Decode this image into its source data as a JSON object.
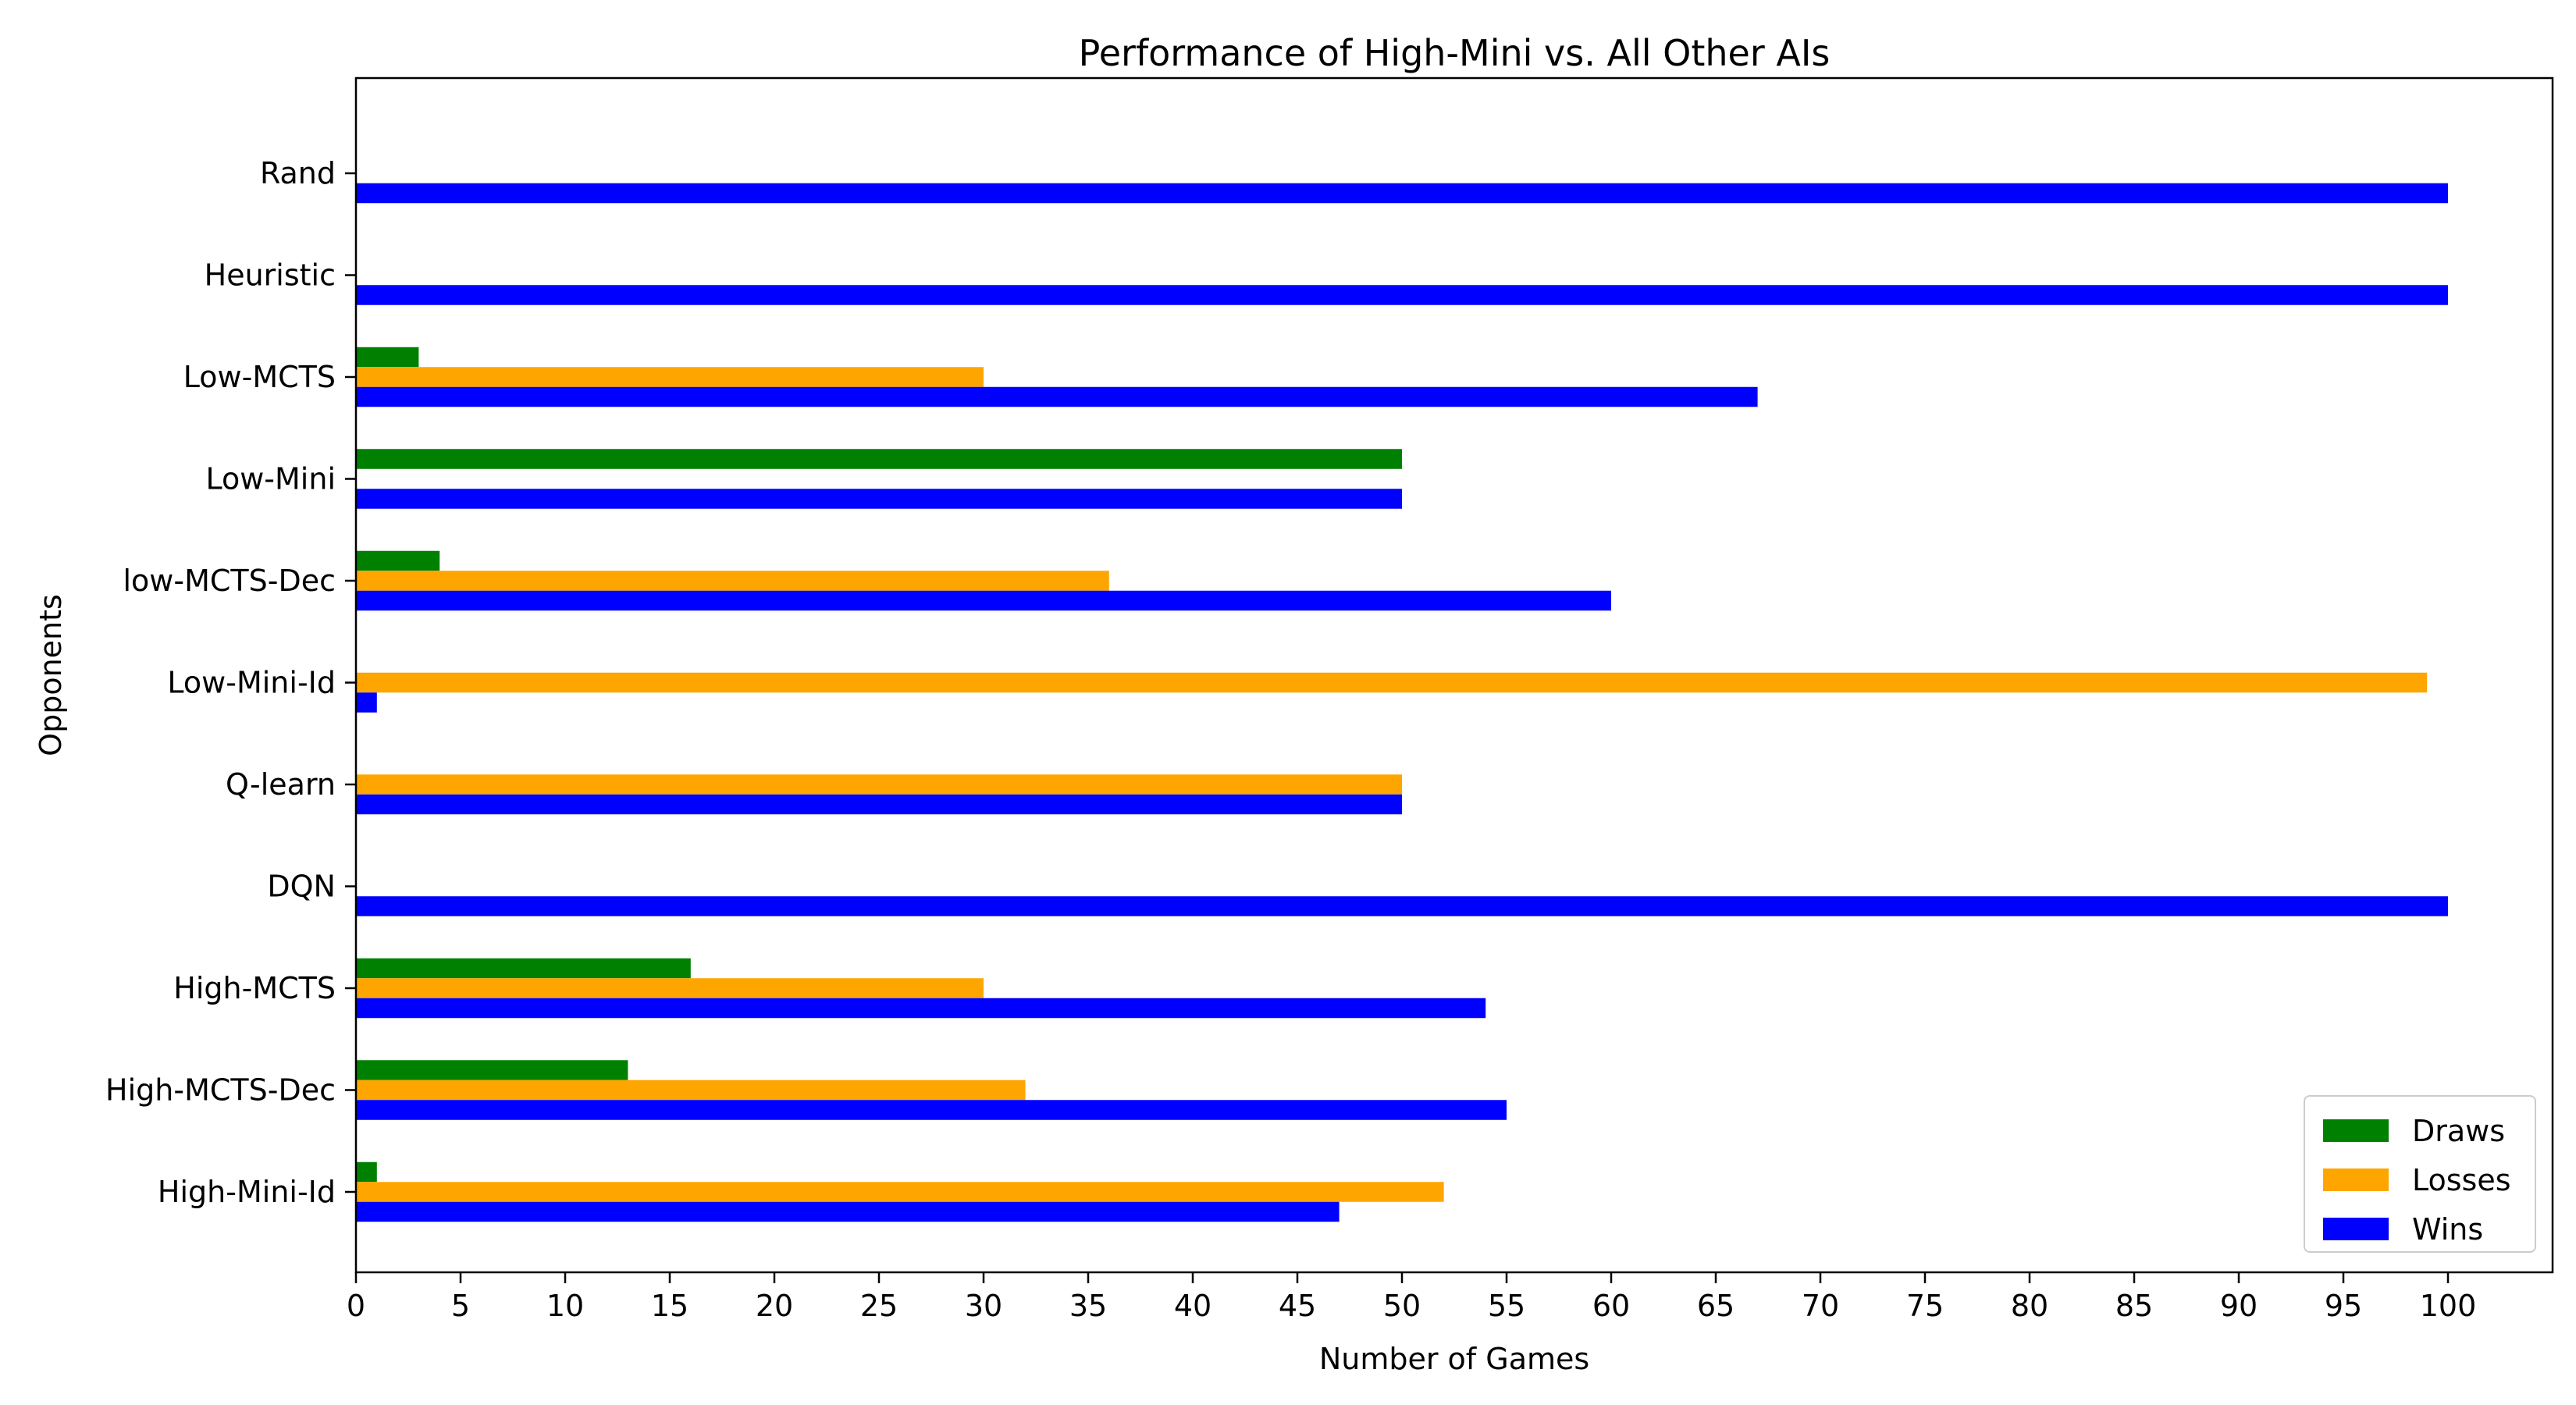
{
  "chart_data": {
    "type": "bar",
    "orientation": "horizontal",
    "title": "Performance of High-Mini vs. All Other AIs",
    "xlabel": "Number of Games",
    "ylabel": "Opponents",
    "xlim": [
      0,
      105
    ],
    "xticks": [
      0,
      5,
      10,
      15,
      20,
      25,
      30,
      35,
      40,
      45,
      50,
      55,
      60,
      65,
      70,
      75,
      80,
      85,
      90,
      95,
      100
    ],
    "categories": [
      "Rand",
      "Heuristic",
      "Low-MCTS",
      "Low-Mini",
      "low-MCTS-Dec",
      "Low-Mini-Id",
      "Q-learn",
      "DQN",
      "High-MCTS",
      "High-MCTS-Dec",
      "High-Mini-Id"
    ],
    "series": [
      {
        "name": "Draws",
        "color": "#008000",
        "values": [
          0,
          0,
          3,
          50,
          4,
          0,
          0,
          0,
          16,
          13,
          1
        ]
      },
      {
        "name": "Losses",
        "color": "#ffa500",
        "values": [
          0,
          0,
          30,
          0,
          36,
          99,
          50,
          0,
          30,
          32,
          52
        ]
      },
      {
        "name": "Wins",
        "color": "#0000ff",
        "values": [
          100,
          100,
          67,
          50,
          60,
          1,
          50,
          100,
          54,
          55,
          47
        ]
      }
    ],
    "legend_position": "bottom-right",
    "grid": false
  }
}
